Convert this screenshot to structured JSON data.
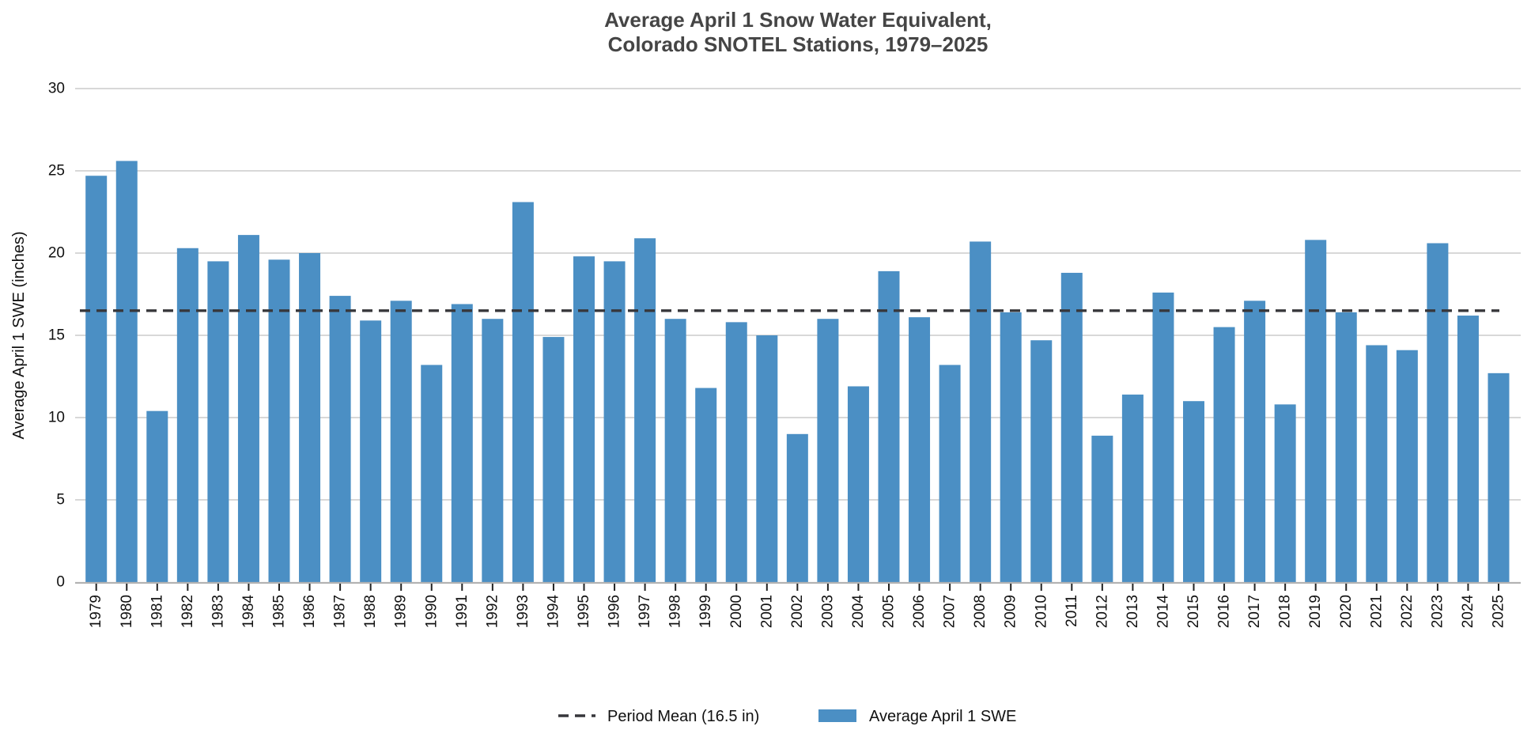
{
  "chart_data": {
    "type": "bar",
    "title_line1": "Average April 1 Snow Water Equivalent,",
    "title_line2": "Colorado SNOTEL Stations, 1979–2025",
    "ylabel": "Average April 1 SWE (inches)",
    "xlabel": "",
    "ylim": [
      0,
      30
    ],
    "yticks": [
      0,
      5,
      10,
      15,
      20,
      25,
      30
    ],
    "grid": "horizontal",
    "legend_position": "bottom-center",
    "categories": [
      "1979",
      "1980",
      "1981",
      "1982",
      "1983",
      "1984",
      "1985",
      "1986",
      "1987",
      "1988",
      "1989",
      "1990",
      "1991",
      "1992",
      "1993",
      "1994",
      "1995",
      "1996",
      "1997",
      "1998",
      "1999",
      "2000",
      "2001",
      "2002",
      "2003",
      "2004",
      "2005",
      "2006",
      "2007",
      "2008",
      "2009",
      "2010",
      "2011",
      "2012",
      "2013",
      "2014",
      "2015",
      "2016",
      "2017",
      "2018",
      "2019",
      "2020",
      "2021",
      "2022",
      "2023",
      "2024",
      "2025"
    ],
    "values": [
      24.7,
      25.6,
      10.4,
      20.3,
      19.5,
      21.1,
      19.6,
      20.0,
      17.4,
      15.9,
      17.1,
      13.2,
      16.9,
      16.0,
      23.1,
      14.9,
      19.8,
      19.5,
      20.9,
      16.0,
      11.8,
      15.8,
      15.0,
      9.0,
      16.0,
      11.9,
      18.9,
      16.1,
      13.2,
      20.7,
      16.4,
      14.7,
      18.8,
      8.9,
      11.4,
      17.6,
      11.0,
      15.5,
      17.1,
      10.8,
      20.8,
      16.4,
      14.4,
      14.1,
      20.6,
      16.2,
      12.7
    ],
    "series_name": "Average April 1 SWE",
    "mean_line": {
      "value": 16.5,
      "label": "Period Mean (16.5 in)",
      "style": "dashed"
    },
    "colors": {
      "bar": "#4b8fc4",
      "mean_line": "#37373b",
      "gridline": "#cbcbcb",
      "axis_line": "#b3b3b3",
      "tick_mark": "#222222",
      "title_text": "#454545",
      "label_text": "#111111"
    }
  }
}
